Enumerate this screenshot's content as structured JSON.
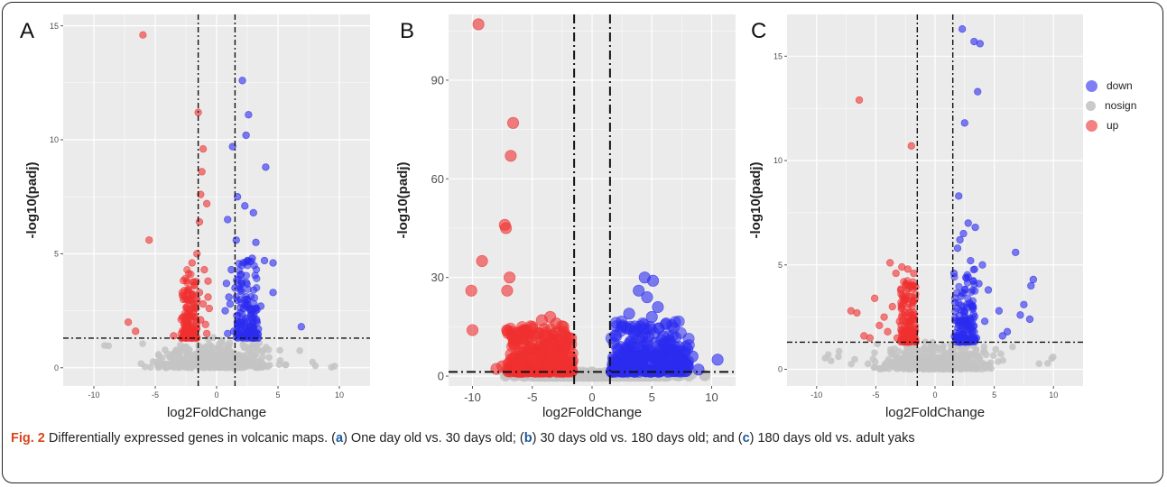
{
  "caption": {
    "label": "Fig. 2",
    "parts": [
      " Differentially expressed genes in volcanic maps. (",
      "a",
      ") One day old vs. 30 days old; (",
      "b",
      ") 30 days old vs. 180 days old; and (",
      "c",
      ") 180 days old vs. adult yaks"
    ]
  },
  "colors": {
    "down": "#2b2bf0",
    "nosign": "#c4c4c4",
    "up": "#f03030",
    "panel_bg": "#ebebeb",
    "grid": "#ffffff"
  },
  "legend": {
    "items": [
      {
        "label": "down",
        "color": "#2b2bf0"
      },
      {
        "label": "nosign",
        "color": "#c4c4c4"
      },
      {
        "label": "up",
        "color": "#f03030"
      }
    ]
  },
  "chart_data": [
    {
      "type": "scatter",
      "panel_letter": "A",
      "xlabel": "log2FoldChange",
      "ylabel": "-log10(padj)",
      "xlim": [
        -12.5,
        12.5
      ],
      "ylim": [
        -0.8,
        15.5
      ],
      "xticks": [
        -10,
        -5,
        0,
        5,
        10
      ],
      "yticks": [
        0,
        5,
        10,
        15
      ],
      "grid": true,
      "vlines": [
        -1.5,
        1.5
      ],
      "hline": 1.3,
      "up_points": [
        [
          -6.0,
          14.6
        ],
        [
          -1.5,
          11.2
        ],
        [
          -1.1,
          9.6
        ],
        [
          -1.2,
          8.6
        ],
        [
          -1.3,
          7.6
        ],
        [
          -0.8,
          7.2
        ],
        [
          -1.4,
          6.4
        ],
        [
          -5.5,
          5.6
        ],
        [
          -1.6,
          5.0
        ],
        [
          -7.2,
          2.0
        ],
        [
          -6.6,
          1.6
        ],
        [
          -3.5,
          1.4
        ],
        [
          -2.0,
          4.6
        ],
        [
          -1.0,
          4.3
        ],
        [
          -0.7,
          3.8
        ],
        [
          -1.8,
          3.6
        ],
        [
          -2.2,
          3.0
        ],
        [
          -1.1,
          2.8
        ],
        [
          -0.6,
          2.6
        ],
        [
          -1.9,
          2.4
        ],
        [
          -1.3,
          2.1
        ],
        [
          -0.9,
          1.9
        ],
        [
          -2.5,
          1.8
        ],
        [
          -1.7,
          1.6
        ],
        [
          -0.8,
          1.5
        ],
        [
          -1.4,
          3.3
        ],
        [
          -2.8,
          2.2
        ],
        [
          -1.6,
          2.9
        ],
        [
          -0.7,
          3.1
        ],
        [
          -2.3,
          1.5
        ]
      ],
      "down_points": [
        [
          2.1,
          12.6
        ],
        [
          2.6,
          11.1
        ],
        [
          2.4,
          10.2
        ],
        [
          1.3,
          9.7
        ],
        [
          4.0,
          8.8
        ],
        [
          1.7,
          7.5
        ],
        [
          2.3,
          7.1
        ],
        [
          0.9,
          6.5
        ],
        [
          3.0,
          6.8
        ],
        [
          1.6,
          5.6
        ],
        [
          3.2,
          5.5
        ],
        [
          2.9,
          4.8
        ],
        [
          4.6,
          4.6
        ],
        [
          3.9,
          4.7
        ],
        [
          1.2,
          4.3
        ],
        [
          2.0,
          4.1
        ],
        [
          0.8,
          3.7
        ],
        [
          1.5,
          3.5
        ],
        [
          4.6,
          3.3
        ],
        [
          2.5,
          3.0
        ],
        [
          1.1,
          2.8
        ],
        [
          0.7,
          2.5
        ],
        [
          2.8,
          2.3
        ],
        [
          1.9,
          2.0
        ],
        [
          6.9,
          1.8
        ],
        [
          1.4,
          1.6
        ],
        [
          3.4,
          1.7
        ],
        [
          0.9,
          1.5
        ],
        [
          2.2,
          2.6
        ],
        [
          1.0,
          3.1
        ],
        [
          3.6,
          2.7
        ]
      ]
    },
    {
      "type": "scatter",
      "panel_letter": "B",
      "xlabel": "log2FoldChange",
      "ylabel": "-log10(padj)",
      "xlim": [
        -12,
        12
      ],
      "ylim": [
        -3,
        110
      ],
      "xticks": [
        -10,
        -5,
        0,
        5,
        10
      ],
      "yticks": [
        0,
        30,
        60,
        90
      ],
      "grid": true,
      "vlines": [
        -1.5,
        1.5
      ],
      "hline": 1.3,
      "up_points": [
        [
          -9.5,
          107
        ],
        [
          -6.6,
          77
        ],
        [
          -6.8,
          67
        ],
        [
          -7.3,
          46
        ],
        [
          -7.2,
          45
        ],
        [
          -9.2,
          35
        ],
        [
          -6.9,
          30
        ],
        [
          -10.1,
          26
        ],
        [
          -7.1,
          26
        ],
        [
          -10.0,
          14
        ],
        [
          -7.1,
          14
        ],
        [
          -6.5,
          11
        ],
        [
          -5.6,
          14
        ],
        [
          -5.0,
          15
        ],
        [
          -4.2,
          17
        ],
        [
          -3.5,
          18
        ],
        [
          -3.0,
          16
        ],
        [
          -2.4,
          15
        ],
        [
          -4.5,
          13
        ],
        [
          -3.8,
          12
        ],
        [
          -2.8,
          11
        ],
        [
          -2.1,
          10
        ],
        [
          -5.2,
          9
        ],
        [
          -4.0,
          8
        ],
        [
          -3.2,
          7
        ],
        [
          -2.5,
          6
        ],
        [
          -1.9,
          6
        ],
        [
          -5.8,
          5
        ],
        [
          -4.6,
          4
        ],
        [
          -3.6,
          3
        ],
        [
          -2.7,
          3
        ],
        [
          -2.0,
          2.5
        ],
        [
          -7.5,
          3
        ],
        [
          -6.0,
          2
        ],
        [
          -8.0,
          2.2
        ],
        [
          -1.7,
          4
        ],
        [
          -3.3,
          10
        ],
        [
          -4.3,
          6
        ],
        [
          -5.4,
          7
        ]
      ],
      "down_points": [
        [
          4.4,
          30
        ],
        [
          5.1,
          29
        ],
        [
          3.9,
          26
        ],
        [
          4.6,
          24
        ],
        [
          5.5,
          21
        ],
        [
          3.1,
          19
        ],
        [
          5.0,
          18
        ],
        [
          6.2,
          16
        ],
        [
          2.5,
          15
        ],
        [
          3.5,
          13
        ],
        [
          4.2,
          12
        ],
        [
          5.8,
          11
        ],
        [
          6.9,
          9
        ],
        [
          2.2,
          8
        ],
        [
          3.0,
          7
        ],
        [
          4.0,
          6
        ],
        [
          5.2,
          6
        ],
        [
          6.5,
          5
        ],
        [
          7.5,
          5
        ],
        [
          8.4,
          6
        ],
        [
          10.5,
          5
        ],
        [
          8.9,
          2
        ],
        [
          1.8,
          5
        ],
        [
          2.8,
          3
        ],
        [
          3.7,
          2.5
        ],
        [
          4.9,
          2
        ],
        [
          6.0,
          2.5
        ],
        [
          7.2,
          2
        ],
        [
          8.0,
          3
        ],
        [
          1.9,
          2.5
        ],
        [
          3.3,
          9
        ],
        [
          4.7,
          8
        ]
      ]
    },
    {
      "type": "scatter",
      "panel_letter": "C",
      "xlabel": "log2FoldChange",
      "ylabel": "-log10(padj)",
      "xlim": [
        -12.5,
        12.5
      ],
      "ylim": [
        -0.8,
        17
      ],
      "xticks": [
        -10,
        -5,
        0,
        5,
        10
      ],
      "yticks": [
        0,
        5,
        10,
        15
      ],
      "grid": true,
      "vlines": [
        -1.5,
        1.5
      ],
      "hline": 1.3,
      "up_points": [
        [
          -6.4,
          12.9
        ],
        [
          -2.0,
          10.7
        ],
        [
          -3.8,
          5.1
        ],
        [
          -2.8,
          4.9
        ],
        [
          -2.3,
          4.8
        ],
        [
          -1.8,
          4.6
        ],
        [
          -3.3,
          4.6
        ],
        [
          -5.1,
          3.4
        ],
        [
          -2.5,
          3.3
        ],
        [
          -3.6,
          3.0
        ],
        [
          -7.1,
          2.8
        ],
        [
          -6.6,
          2.7
        ],
        [
          -2.0,
          2.6
        ],
        [
          -4.3,
          2.5
        ],
        [
          -3.0,
          2.3
        ],
        [
          -1.7,
          2.1
        ],
        [
          -6.0,
          1.6
        ],
        [
          -5.5,
          1.5
        ],
        [
          -4.0,
          1.8
        ],
        [
          -2.6,
          1.7
        ],
        [
          -3.2,
          1.5
        ],
        [
          -1.9,
          1.5
        ],
        [
          -2.9,
          3.8
        ],
        [
          -2.2,
          3.5
        ],
        [
          -4.7,
          2.1
        ]
      ],
      "down_points": [
        [
          2.3,
          16.3
        ],
        [
          3.3,
          15.7
        ],
        [
          3.8,
          15.6
        ],
        [
          3.6,
          13.3
        ],
        [
          2.5,
          11.8
        ],
        [
          2.0,
          8.3
        ],
        [
          2.8,
          7.0
        ],
        [
          3.4,
          6.8
        ],
        [
          2.4,
          6.5
        ],
        [
          2.1,
          6.2
        ],
        [
          1.9,
          5.8
        ],
        [
          6.8,
          5.6
        ],
        [
          3.0,
          5.2
        ],
        [
          4.0,
          5.0
        ],
        [
          1.6,
          4.6
        ],
        [
          2.6,
          4.4
        ],
        [
          3.7,
          4.1
        ],
        [
          8.3,
          4.3
        ],
        [
          8.1,
          4.0
        ],
        [
          4.5,
          3.8
        ],
        [
          2.2,
          3.5
        ],
        [
          1.7,
          3.2
        ],
        [
          7.5,
          3.1
        ],
        [
          3.1,
          3.0
        ],
        [
          5.4,
          2.8
        ],
        [
          7.2,
          2.6
        ],
        [
          8.0,
          2.4
        ],
        [
          4.2,
          2.3
        ],
        [
          2.9,
          2.1
        ],
        [
          6.1,
          1.8
        ],
        [
          1.8,
          1.6
        ],
        [
          5.7,
          1.6
        ],
        [
          3.5,
          1.5
        ]
      ]
    }
  ]
}
